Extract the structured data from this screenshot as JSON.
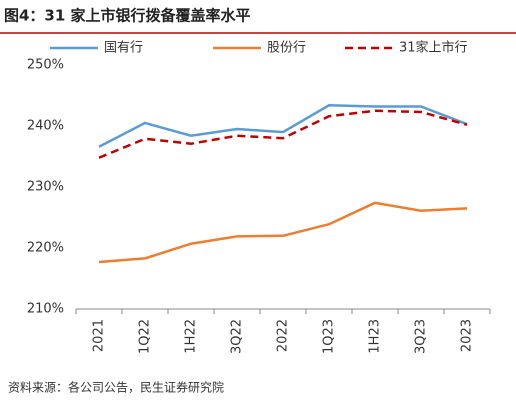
{
  "chart_data": {
    "type": "line",
    "title": "图4：31 家上市银行拨备覆盖率水平",
    "source": "资料来源：各公司公告，民生证券研究院",
    "categories": [
      "2021",
      "1Q22",
      "1H22",
      "3Q22",
      "2022",
      "1Q23",
      "1H23",
      "3Q23",
      "2023"
    ],
    "series": [
      {
        "name": "国有行",
        "color": "#5b9bd5",
        "dash": false,
        "values": [
          236.6,
          240.5,
          238.4,
          239.5,
          239.0,
          243.4,
          243.2,
          243.2,
          240.3
        ]
      },
      {
        "name": "股份行",
        "color": "#ed7d31",
        "dash": false,
        "values": [
          217.7,
          218.3,
          220.7,
          221.9,
          222.0,
          223.9,
          227.4,
          226.1,
          226.5
        ]
      },
      {
        "name": "31家上市行",
        "color": "#c00000",
        "dash": true,
        "values": [
          234.8,
          237.9,
          237.1,
          238.4,
          238.0,
          241.6,
          242.5,
          242.3,
          240.2
        ]
      }
    ],
    "ylim": [
      210,
      250
    ],
    "yticks": [
      {
        "value": 210,
        "label": "210%"
      },
      {
        "value": 220,
        "label": "220%"
      },
      {
        "value": 230,
        "label": "230%"
      },
      {
        "value": 240,
        "label": "240%"
      },
      {
        "value": 250,
        "label": "250%"
      }
    ]
  }
}
